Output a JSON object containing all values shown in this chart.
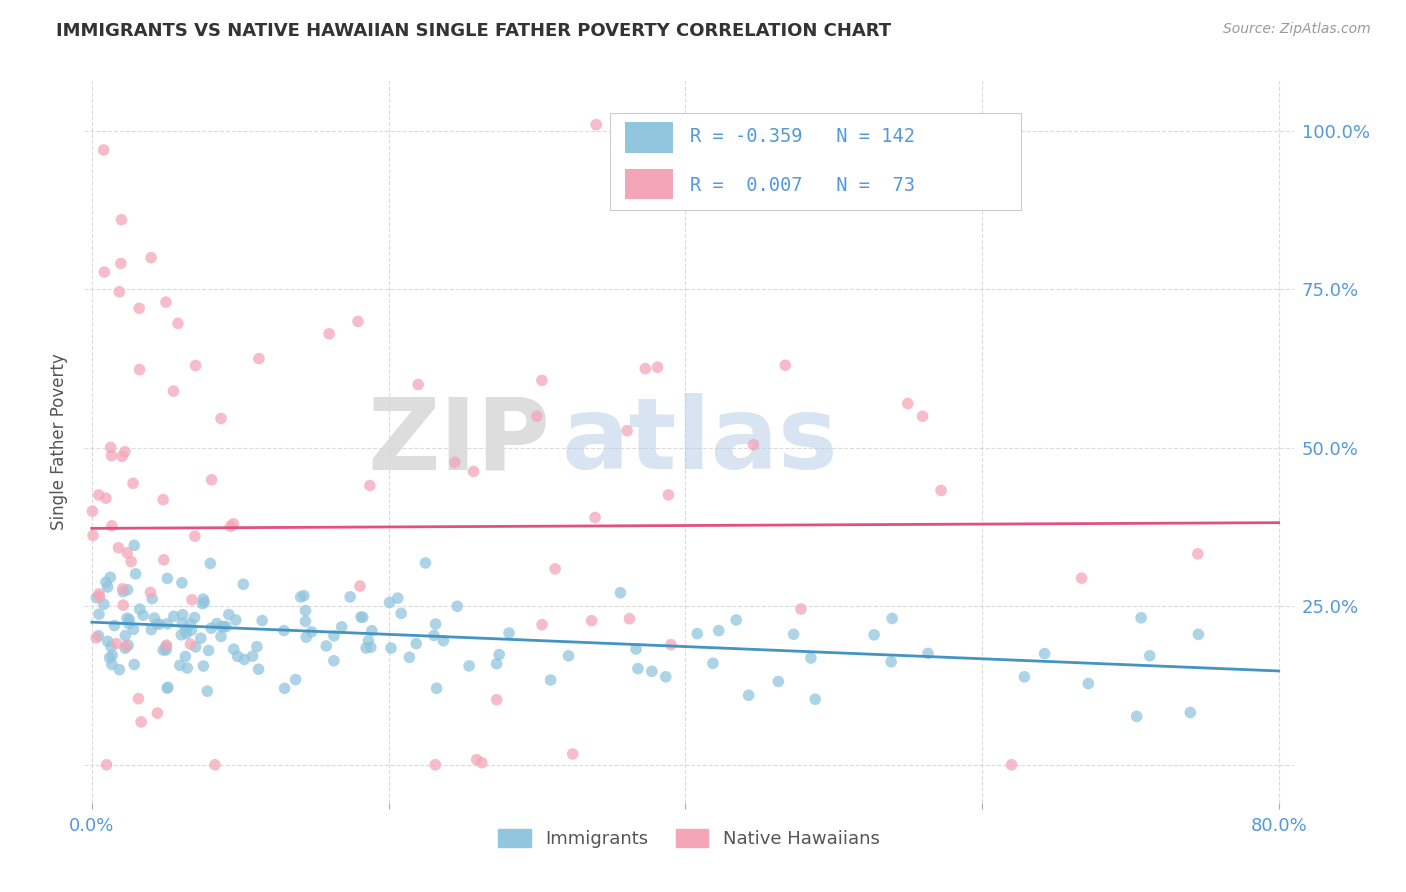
{
  "title": "IMMIGRANTS VS NATIVE HAWAIIAN SINGLE FATHER POVERTY CORRELATION CHART",
  "source": "Source: ZipAtlas.com",
  "ylabel": "Single Father Poverty",
  "legend_label1": "Immigrants",
  "legend_label2": "Native Hawaiians",
  "blue_color": "#92c5de",
  "pink_color": "#f4a6b8",
  "blue_line_color": "#4393c3",
  "pink_line_color": "#e05080",
  "axis_label_color": "#5599dd",
  "title_color": "#333333",
  "background_color": "#ffffff",
  "grid_color": "#cccccc",
  "imm_trend_y0": 0.225,
  "imm_trend_y1": 0.148,
  "nat_trend_y0": 0.373,
  "nat_trend_y1": 0.382,
  "ylim_low": -0.06,
  "ylim_high": 1.08,
  "xlim_low": -0.005,
  "xlim_high": 0.81
}
